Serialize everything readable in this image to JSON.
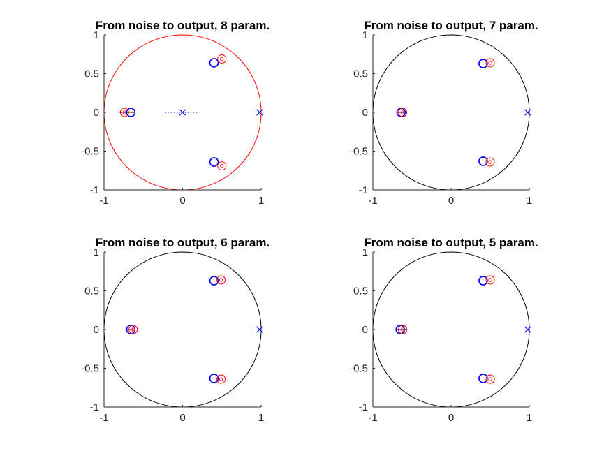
{
  "chart_data": [
    {
      "type": "scatter",
      "title": "From noise to output, 8 param.",
      "xlim": [
        -1,
        1
      ],
      "ylim": [
        -1,
        1
      ],
      "xticks": [
        "-1",
        "0",
        "1"
      ],
      "yticks": [
        "1",
        "0.5",
        "0",
        "-0.5",
        "-1"
      ],
      "grid": false,
      "unit_circle_color": "#ff0000",
      "series": [
        {
          "marker": "circle",
          "color": "#0000ff",
          "points": [
            [
              0.4,
              0.64
            ],
            [
              0.4,
              -0.64
            ],
            [
              -0.66,
              0.0
            ]
          ]
        },
        {
          "marker": "circle",
          "color": "#ff0000",
          "points": [
            [
              0.5,
              0.69
            ],
            [
              0.5,
              -0.69
            ],
            [
              -0.74,
              0.0
            ]
          ]
        },
        {
          "marker": "x",
          "color": "#0000ff",
          "points": [
            [
              0.0,
              0.0
            ],
            [
              0.98,
              0.0
            ]
          ]
        }
      ],
      "annotations": [
        {
          "kind": "dotted-line",
          "color": "#0000ff",
          "from": [
            -0.22,
            0.0
          ],
          "to": [
            0.2,
            0.0
          ]
        },
        {
          "kind": "line",
          "color": "#000000",
          "from": [
            -0.8,
            0.0
          ],
          "to": [
            -0.6,
            0.0
          ]
        }
      ]
    },
    {
      "type": "scatter",
      "title": "From noise to output, 7 param.",
      "xlim": [
        -1,
        1
      ],
      "ylim": [
        -1,
        1
      ],
      "xticks": [
        "-1",
        "0",
        "1"
      ],
      "yticks": [
        "1",
        "0.5",
        "0",
        "-0.5",
        "-1"
      ],
      "grid": false,
      "unit_circle_color": "#000000",
      "series": [
        {
          "marker": "circle",
          "color": "#0000ff",
          "points": [
            [
              0.41,
              0.63
            ],
            [
              0.41,
              -0.63
            ],
            [
              -0.64,
              0.0
            ]
          ]
        },
        {
          "marker": "circle",
          "color": "#ff0000",
          "points": [
            [
              0.5,
              0.64
            ],
            [
              0.5,
              -0.64
            ],
            [
              -0.62,
              0.0
            ]
          ]
        },
        {
          "marker": "x",
          "color": "#0000ff",
          "points": [
            [
              0.98,
              0.0
            ]
          ]
        }
      ],
      "annotations": [
        {
          "kind": "line",
          "color": "#000000",
          "from": [
            -0.7,
            0.0
          ],
          "to": [
            -0.58,
            0.0
          ]
        }
      ]
    },
    {
      "type": "scatter",
      "title": "From noise to output, 6 param.",
      "xlim": [
        -1,
        1
      ],
      "ylim": [
        -1,
        1
      ],
      "xticks": [
        "-1",
        "0",
        "1"
      ],
      "yticks": [
        "1",
        "0.5",
        "0",
        "-0.5",
        "-1"
      ],
      "grid": false,
      "unit_circle_color": "#000000",
      "series": [
        {
          "marker": "circle",
          "color": "#0000ff",
          "points": [
            [
              0.4,
              0.63
            ],
            [
              0.4,
              -0.63
            ],
            [
              -0.66,
              0.0
            ]
          ]
        },
        {
          "marker": "circle",
          "color": "#ff0000",
          "points": [
            [
              0.49,
              0.64
            ],
            [
              0.49,
              -0.64
            ],
            [
              -0.63,
              0.0
            ]
          ]
        },
        {
          "marker": "x",
          "color": "#0000ff",
          "points": [
            [
              0.98,
              0.0
            ]
          ]
        }
      ],
      "annotations": [
        {
          "kind": "line",
          "color": "#0000ff",
          "from": [
            -0.72,
            0.0
          ],
          "to": [
            -0.62,
            0.0
          ]
        }
      ]
    },
    {
      "type": "scatter",
      "title": "From noise to output, 5 param.",
      "xlim": [
        -1,
        1
      ],
      "ylim": [
        -1,
        1
      ],
      "xticks": [
        "-1",
        "0",
        "1"
      ],
      "yticks": [
        "1",
        "0.5",
        "0",
        "-0.5",
        "-1"
      ],
      "grid": false,
      "unit_circle_color": "#000000",
      "series": [
        {
          "marker": "circle",
          "color": "#0000ff",
          "points": [
            [
              0.41,
              0.63
            ],
            [
              0.41,
              -0.63
            ],
            [
              -0.65,
              0.0
            ]
          ]
        },
        {
          "marker": "circle",
          "color": "#ff0000",
          "points": [
            [
              0.5,
              0.64
            ],
            [
              0.5,
              -0.64
            ],
            [
              -0.62,
              0.0
            ]
          ]
        },
        {
          "marker": "x",
          "color": "#0000ff",
          "points": [
            [
              0.98,
              0.0
            ]
          ]
        }
      ],
      "annotations": [
        {
          "kind": "line",
          "color": "#000000",
          "from": [
            -0.7,
            0.0
          ],
          "to": [
            -0.58,
            0.0
          ]
        }
      ]
    }
  ]
}
